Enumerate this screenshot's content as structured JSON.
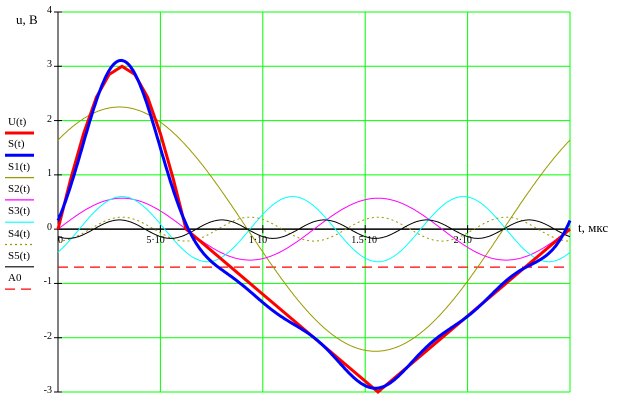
{
  "chart_data": {
    "type": "line",
    "ylabel": "u, B",
    "xlabel": "t, мкс",
    "xlim": [
      0,
      2.5
    ],
    "ylim": [
      -3,
      4
    ],
    "grid": true,
    "grid_color": "#00ff00",
    "legend_placement": "left",
    "y_ticks": [
      "4",
      "3",
      "2",
      "1",
      "0",
      "-1",
      "-2",
      "-3"
    ],
    "x_ticks": [
      {
        "value": 0,
        "label": "0"
      },
      {
        "value": 0.5,
        "label": "5·10"
      },
      {
        "value": 1.0,
        "label": "1·10"
      },
      {
        "value": 1.5,
        "label": "1.5·10"
      },
      {
        "value": 2.0,
        "label": "2·10"
      }
    ],
    "period": 2.5,
    "U": {
      "name": "U(t)",
      "color": "#ff0000",
      "style": "solid-thick",
      "points": [
        [
          0,
          0
        ],
        [
          0.0625,
          0.93
        ],
        [
          0.125,
          1.76
        ],
        [
          0.1875,
          2.43
        ],
        [
          0.25,
          2.85
        ],
        [
          0.3125,
          3.0
        ],
        [
          0.375,
          2.85
        ],
        [
          0.4375,
          2.43
        ],
        [
          0.5,
          1.76
        ],
        [
          0.5625,
          0.93
        ],
        [
          0.625,
          0
        ],
        [
          1.5625,
          -3.0
        ],
        [
          2.5,
          0
        ]
      ]
    },
    "S": {
      "name": "S(t)",
      "color": "#0000ff",
      "style": "solid-thick"
    },
    "harmonics": [
      {
        "name": "S1(t)",
        "harmonic": 1,
        "amplitude": 2.25,
        "peak_t": 0.3,
        "color": "#999900",
        "style": "solid"
      },
      {
        "name": "S2(t)",
        "harmonic": 2,
        "amplitude": 0.57,
        "peak_t": 0.3125,
        "color": "#ff00ff",
        "style": "solid"
      },
      {
        "name": "S3(t)",
        "harmonic": 3,
        "amplitude": 0.6,
        "peak_t": 0.3125,
        "color": "#00ffff",
        "style": "solid"
      },
      {
        "name": "S4(t)",
        "harmonic": 4,
        "amplitude": 0.22,
        "peak_t": 0.3125,
        "color": "#999900",
        "style": "dotted"
      },
      {
        "name": "S5(t)",
        "harmonic": 5,
        "amplitude": 0.17,
        "peak_t": 0.3,
        "color": "#000000",
        "style": "solid"
      }
    ],
    "A0": {
      "name": "A0",
      "value": -0.7,
      "color": "#ff0000",
      "style": "dashed"
    }
  }
}
